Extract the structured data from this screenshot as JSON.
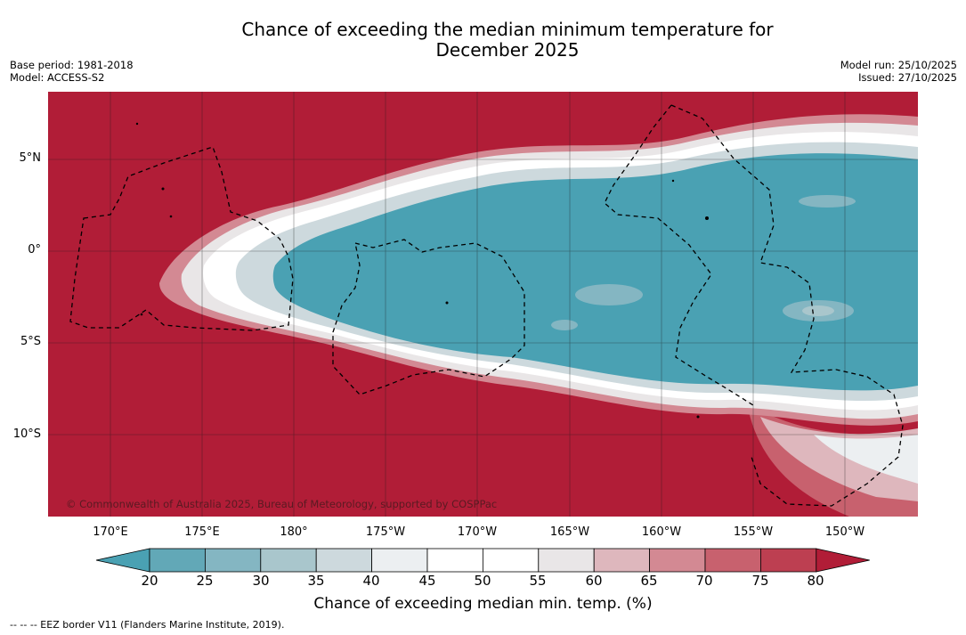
{
  "title": {
    "line1": "Chance of exceeding the median minimum temperature for",
    "line2": "December 2025"
  },
  "meta_left": {
    "base_period": "Base period: 1981-2018",
    "model": "Model: ACCESS-S2"
  },
  "meta_right": {
    "model_run": "Model run: 25/10/2025",
    "issued": "Issued: 27/10/2025"
  },
  "map": {
    "lat_labels": [
      "5°N",
      "0°",
      "5°S",
      "10°S"
    ],
    "lon_labels": [
      "170°E",
      "175°E",
      "180°",
      "175°W",
      "170°W",
      "165°W",
      "160°W",
      "155°W",
      "150°W"
    ],
    "copyright": "© Commonwealth of Australia 2025, Bureau of Meteorology, supported by COSPPac",
    "colors": {
      "high": "#b11d37",
      "low": "#4aa1b3",
      "mid": "#ffffff"
    }
  },
  "colorbar": {
    "ticks": [
      "20",
      "25",
      "30",
      "35",
      "40",
      "45",
      "50",
      "55",
      "60",
      "65",
      "70",
      "75",
      "80"
    ],
    "label": "Chance of exceeding median min. temp. (%)",
    "colors": [
      "#62a8b7",
      "#84b6c2",
      "#a9c6cc",
      "#cdd9dd",
      "#eceff1",
      "#ffffff",
      "#ffffff",
      "#e9e6e7",
      "#deb7bd",
      "#d38993",
      "#c8616e",
      "#bd3f51"
    ],
    "under_color": "#4aa1b3",
    "over_color": "#b11d37"
  },
  "legend_note": "--  --  -- EEZ border V11 (Flanders Marine Institute, 2019)."
}
